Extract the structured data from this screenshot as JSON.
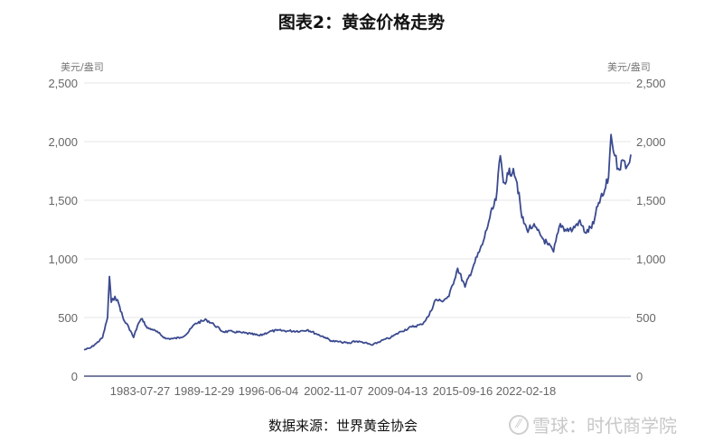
{
  "header": {
    "title": "图表2：黄金价格走势"
  },
  "footer": {
    "source": "数据来源：世界黄金协会",
    "watermark": "雪球：时代商学院",
    "watermark_logo": "雪球-logo-icon"
  },
  "chart_data": {
    "type": "line",
    "title": "图表2：黄金价格走势",
    "xlabel": "",
    "ylabel": "美元/盎司",
    "ylabel_right": "美元/盎司",
    "ylim": [
      0,
      2500
    ],
    "yticks": [
      0,
      500,
      1000,
      1500,
      2000,
      2500
    ],
    "ytick_labels": [
      "0",
      "500",
      "1,000",
      "1,500",
      "2,000",
      "2,500"
    ],
    "xtick_labels": [
      "1983-07-27",
      "1989-12-29",
      "1996-06-04",
      "2002-11-07",
      "2009-04-13",
      "2015-09-16",
      "2022-02-18"
    ],
    "grid": true,
    "legend": "none",
    "line_color": "#3b4a8f",
    "series": [
      {
        "name": "黄金价格",
        "x": [
          1978.0,
          1978.5,
          1979.0,
          1979.5,
          1979.9,
          1980.05,
          1980.2,
          1980.5,
          1980.8,
          1981.2,
          1981.6,
          1982.0,
          1982.4,
          1982.7,
          1983.1,
          1983.5,
          1984.0,
          1984.6,
          1985.2,
          1985.8,
          1986.3,
          1987.0,
          1987.9,
          1988.5,
          1989.2,
          1990.0,
          1990.8,
          1991.5,
          1992.2,
          1993.0,
          1993.6,
          1994.5,
          1995.5,
          1996.1,
          1996.8,
          1997.5,
          1998.0,
          1998.8,
          1999.5,
          1999.8,
          2000.5,
          2001.3,
          2002.0,
          2002.8,
          2003.6,
          2004.5,
          2005.3,
          2005.9,
          2006.4,
          2006.9,
          2007.5,
          2008.2,
          2008.8,
          2009.5,
          2010.2,
          2010.8,
          2011.3,
          2011.65,
          2011.9,
          2012.3,
          2012.7,
          2013.0,
          2013.4,
          2013.8,
          2014.3,
          2014.9,
          2015.5,
          2015.95,
          2016.5,
          2016.9,
          2017.5,
          2018.0,
          2018.6,
          2019.2,
          2019.6,
          2020.0,
          2020.4,
          2020.6,
          2020.9,
          2021.2,
          2021.6,
          2021.9,
          2022.2
        ],
        "values": [
          225,
          240,
          280,
          330,
          500,
          850,
          630,
          680,
          620,
          480,
          420,
          330,
          450,
          490,
          410,
          400,
          370,
          320,
          320,
          330,
          360,
          450,
          480,
          440,
          380,
          380,
          370,
          360,
          345,
          380,
          390,
          385,
          385,
          395,
          360,
          330,
          300,
          290,
          280,
          300,
          290,
          265,
          300,
          330,
          380,
          420,
          440,
          520,
          650,
          640,
          680,
          920,
          760,
          950,
          1120,
          1350,
          1500,
          1880,
          1650,
          1720,
          1770,
          1650,
          1350,
          1250,
          1280,
          1200,
          1120,
          1060,
          1300,
          1250,
          1250,
          1320,
          1220,
          1300,
          1480,
          1550,
          1700,
          2060,
          1880,
          1770,
          1840,
          1790,
          1890
        ]
      }
    ]
  }
}
